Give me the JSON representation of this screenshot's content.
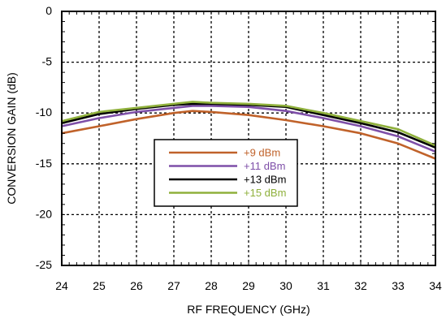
{
  "chart_data": {
    "type": "line",
    "title": "",
    "xlabel": "RF FREQUENCY (GHz)",
    "ylabel": "CONVERSION GAIN (dB)",
    "xlim": [
      24,
      34
    ],
    "ylim": [
      -25,
      0
    ],
    "xticks": [
      24,
      25,
      26,
      27,
      28,
      29,
      30,
      31,
      32,
      33,
      34
    ],
    "yticks": [
      0,
      -5,
      -10,
      -15,
      -20,
      -25
    ],
    "grid": true,
    "legend": "center",
    "series": [
      {
        "name": "+9 dBm",
        "color": "#c0622a",
        "x": [
          24,
          25,
          26,
          27,
          27.5,
          28,
          29,
          30,
          31,
          32,
          33,
          34
        ],
        "y": [
          -12.0,
          -11.3,
          -10.6,
          -10.0,
          -9.8,
          -9.9,
          -10.2,
          -10.7,
          -11.3,
          -12.0,
          -13.0,
          -14.5
        ]
      },
      {
        "name": "+11 dBm",
        "color": "#7e4fa8",
        "x": [
          24,
          25,
          26,
          27,
          27.5,
          28,
          29,
          30,
          31,
          32,
          33,
          34
        ],
        "y": [
          -11.3,
          -10.5,
          -9.9,
          -9.5,
          -9.3,
          -9.3,
          -9.4,
          -9.8,
          -10.5,
          -11.3,
          -12.3,
          -13.8
        ]
      },
      {
        "name": "+13 dBm",
        "color": "#000000",
        "x": [
          24,
          25,
          26,
          27,
          27.5,
          28,
          29,
          30,
          31,
          32,
          33,
          34
        ],
        "y": [
          -11.0,
          -10.1,
          -9.6,
          -9.2,
          -9.1,
          -9.1,
          -9.2,
          -9.4,
          -10.2,
          -11.0,
          -11.9,
          -13.4
        ]
      },
      {
        "name": "+15 dBm",
        "color": "#8fb03c",
        "x": [
          24,
          25,
          26,
          27,
          27.5,
          28,
          29,
          30,
          31,
          32,
          33,
          34
        ],
        "y": [
          -10.8,
          -9.9,
          -9.5,
          -9.1,
          -8.9,
          -9.0,
          -9.1,
          -9.3,
          -10.0,
          -10.8,
          -11.6,
          -13.2
        ]
      }
    ]
  }
}
